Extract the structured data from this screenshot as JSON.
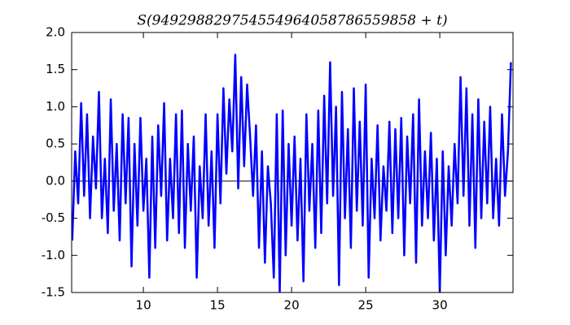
{
  "chart_data": {
    "type": "line",
    "title": "S(949298829754554964058786559858 + t)",
    "x": [
      5.2,
      5.4,
      5.6,
      5.8,
      6.0,
      6.2,
      6.4,
      6.6,
      6.8,
      7.0,
      7.2,
      7.4,
      7.6,
      7.8,
      8.0,
      8.2,
      8.4,
      8.6,
      8.8,
      9.0,
      9.2,
      9.4,
      9.6,
      9.8,
      10.0,
      10.2,
      10.4,
      10.6,
      10.8,
      11.0,
      11.2,
      11.4,
      11.6,
      11.8,
      12.0,
      12.2,
      12.4,
      12.6,
      12.8,
      13.0,
      13.2,
      13.4,
      13.6,
      13.8,
      14.0,
      14.2,
      14.4,
      14.6,
      14.8,
      15.0,
      15.2,
      15.4,
      15.6,
      15.8,
      16.0,
      16.2,
      16.4,
      16.6,
      16.8,
      17.0,
      17.2,
      17.4,
      17.6,
      17.8,
      18.0,
      18.2,
      18.4,
      18.6,
      18.8,
      19.0,
      19.2,
      19.4,
      19.6,
      19.8,
      20.0,
      20.2,
      20.4,
      20.6,
      20.8,
      21.0,
      21.2,
      21.4,
      21.6,
      21.8,
      22.0,
      22.2,
      22.4,
      22.6,
      22.8,
      23.0,
      23.2,
      23.4,
      23.6,
      23.8,
      24.0,
      24.2,
      24.4,
      24.6,
      24.8,
      25.0,
      25.2,
      25.4,
      25.6,
      25.8,
      26.0,
      26.2,
      26.4,
      26.6,
      26.8,
      27.0,
      27.2,
      27.4,
      27.6,
      27.8,
      28.0,
      28.2,
      28.4,
      28.6,
      28.8,
      29.0,
      29.2,
      29.4,
      29.6,
      29.8,
      30.0,
      30.2,
      30.4,
      30.6,
      30.8,
      31.0,
      31.2,
      31.4,
      31.6,
      31.8,
      32.0,
      32.2,
      32.4,
      32.6,
      32.8,
      33.0,
      33.2,
      33.4,
      33.6,
      33.8,
      34.0,
      34.2,
      34.4,
      34.6,
      34.8
    ],
    "series": [
      {
        "color": "#0000ff",
        "values": [
          -0.8,
          0.4,
          -0.3,
          1.05,
          -0.2,
          0.9,
          -0.5,
          0.6,
          -0.1,
          1.2,
          -0.5,
          0.3,
          -0.7,
          1.1,
          -0.4,
          0.5,
          -0.8,
          0.9,
          -0.3,
          0.85,
          -1.15,
          0.5,
          -0.6,
          0.85,
          -0.4,
          0.3,
          -1.3,
          0.6,
          -0.9,
          0.75,
          -0.2,
          1.05,
          -0.8,
          0.3,
          -0.5,
          0.9,
          -0.7,
          0.95,
          -0.9,
          0.5,
          -0.4,
          0.6,
          -1.3,
          0.2,
          -0.5,
          0.9,
          -0.6,
          0.4,
          -0.9,
          0.9,
          -0.3,
          1.25,
          0.1,
          1.1,
          0.4,
          1.7,
          -0.1,
          1.4,
          0.2,
          1.3,
          0.6,
          -0.2,
          0.75,
          -0.9,
          0.4,
          -1.1,
          0.2,
          -0.3,
          -1.3,
          0.9,
          -1.5,
          0.95,
          -1.0,
          0.5,
          -0.6,
          0.6,
          -0.8,
          0.3,
          -1.35,
          0.9,
          -0.4,
          0.5,
          -0.9,
          0.95,
          -0.7,
          1.15,
          -0.3,
          1.6,
          -0.2,
          1.0,
          -1.4,
          1.2,
          -0.5,
          0.7,
          -0.9,
          1.25,
          -0.4,
          0.8,
          -0.6,
          1.3,
          -1.3,
          0.3,
          -0.5,
          0.75,
          -0.8,
          0.2,
          -0.4,
          0.8,
          -0.7,
          0.7,
          -0.5,
          0.85,
          -1.0,
          0.6,
          -0.3,
          0.9,
          -1.1,
          1.1,
          -0.6,
          0.4,
          -0.5,
          0.65,
          -0.8,
          0.3,
          -1.5,
          0.4,
          -1.0,
          0.2,
          -0.6,
          0.5,
          -0.3,
          1.4,
          -0.2,
          1.25,
          -0.6,
          0.9,
          -0.9,
          1.1,
          -0.5,
          0.8,
          -0.3,
          1.0,
          -0.5,
          0.3,
          -0.6,
          0.9,
          -0.2,
          0.4,
          1.6
        ]
      }
    ],
    "xlim": [
      5.16,
      34.94
    ],
    "ylim": [
      -1.5,
      2.0
    ],
    "xticks": [
      10,
      15,
      20,
      25,
      30
    ],
    "yticks": [
      -1.5,
      {
        "value": -1.0,
        "label": "-1.0"
      },
      -0.5,
      {
        "value": 0.0,
        "label": "0.0"
      },
      0.5,
      {
        "value": 1.0,
        "label": "1.0"
      },
      1.5,
      {
        "value": 2.0,
        "label": "2.0"
      }
    ]
  }
}
